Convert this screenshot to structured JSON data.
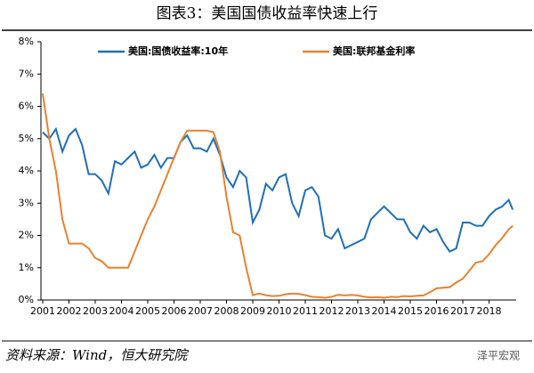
{
  "chart_data": {
    "type": "line",
    "title": "图表3：美国国债收益率快速上行",
    "source": "资料来源：Wind，恒大研究院",
    "watermark": "泽平宏观",
    "x": [
      2001,
      2001.25,
      2001.5,
      2001.75,
      2002,
      2002.25,
      2002.5,
      2002.75,
      2003,
      2003.25,
      2003.5,
      2003.75,
      2004,
      2004.25,
      2004.5,
      2004.75,
      2005,
      2005.25,
      2005.5,
      2005.75,
      2006,
      2006.25,
      2006.5,
      2006.75,
      2007,
      2007.25,
      2007.5,
      2007.75,
      2008,
      2008.25,
      2008.5,
      2008.75,
      2009,
      2009.25,
      2009.5,
      2009.75,
      2010,
      2010.25,
      2010.5,
      2010.75,
      2011,
      2011.25,
      2011.5,
      2011.75,
      2012,
      2012.25,
      2012.5,
      2012.75,
      2013,
      2013.25,
      2013.5,
      2013.75,
      2014,
      2014.25,
      2014.5,
      2014.75,
      2015,
      2015.25,
      2015.5,
      2015.75,
      2016,
      2016.25,
      2016.5,
      2016.75,
      2017,
      2017.25,
      2017.5,
      2017.75,
      2018,
      2018.25,
      2018.5,
      2018.75,
      2018.9
    ],
    "series": [
      {
        "name": "美国:国债收益率:10年",
        "color": "#1f6fb8",
        "values": [
          5.2,
          5.0,
          5.3,
          4.6,
          5.1,
          5.3,
          4.8,
          3.9,
          3.9,
          3.7,
          3.3,
          4.3,
          4.2,
          4.4,
          4.6,
          4.1,
          4.2,
          4.5,
          4.1,
          4.4,
          4.4,
          4.9,
          5.1,
          4.7,
          4.7,
          4.6,
          5.0,
          4.5,
          3.8,
          3.5,
          4.0,
          3.8,
          2.4,
          2.8,
          3.6,
          3.4,
          3.8,
          3.9,
          3.0,
          2.6,
          3.4,
          3.5,
          3.2,
          2.0,
          1.9,
          2.2,
          1.6,
          1.7,
          1.8,
          1.9,
          2.5,
          2.7,
          2.9,
          2.7,
          2.5,
          2.5,
          2.1,
          1.9,
          2.3,
          2.1,
          2.2,
          1.8,
          1.5,
          1.6,
          2.4,
          2.4,
          2.3,
          2.3,
          2.6,
          2.8,
          2.9,
          3.1,
          2.8
        ]
      },
      {
        "name": "美国:联邦基金利率",
        "color": "#e8822f",
        "values": [
          6.4,
          5.0,
          4.0,
          2.5,
          1.75,
          1.75,
          1.75,
          1.6,
          1.3,
          1.2,
          1.0,
          1.0,
          1.0,
          1.0,
          1.5,
          2.0,
          2.5,
          2.9,
          3.4,
          3.9,
          4.4,
          4.9,
          5.25,
          5.25,
          5.25,
          5.25,
          5.2,
          4.6,
          3.2,
          2.1,
          2.0,
          1.0,
          0.15,
          0.2,
          0.15,
          0.12,
          0.13,
          0.18,
          0.2,
          0.19,
          0.15,
          0.1,
          0.09,
          0.07,
          0.1,
          0.16,
          0.14,
          0.16,
          0.14,
          0.1,
          0.08,
          0.09,
          0.07,
          0.1,
          0.09,
          0.12,
          0.11,
          0.13,
          0.14,
          0.24,
          0.36,
          0.38,
          0.4,
          0.54,
          0.66,
          0.91,
          1.16,
          1.2,
          1.42,
          1.7,
          1.92,
          2.19,
          2.3
        ]
      }
    ],
    "xlim": [
      2001,
      2019
    ],
    "xticks": [
      2001,
      2002,
      2003,
      2004,
      2005,
      2006,
      2007,
      2008,
      2009,
      2010,
      2011,
      2012,
      2013,
      2014,
      2015,
      2016,
      2017,
      2018
    ],
    "ylim": [
      0,
      8
    ],
    "yticks": [
      {
        "value": 0,
        "label": "0%"
      },
      {
        "value": 1,
        "label": "1%"
      },
      {
        "value": 2,
        "label": "2%"
      },
      {
        "value": 3,
        "label": "3%"
      },
      {
        "value": 4,
        "label": "4%"
      },
      {
        "value": 5,
        "label": "5%"
      },
      {
        "value": 6,
        "label": "6%"
      },
      {
        "value": 7,
        "label": "7%"
      },
      {
        "value": 8,
        "label": "8%"
      }
    ]
  }
}
